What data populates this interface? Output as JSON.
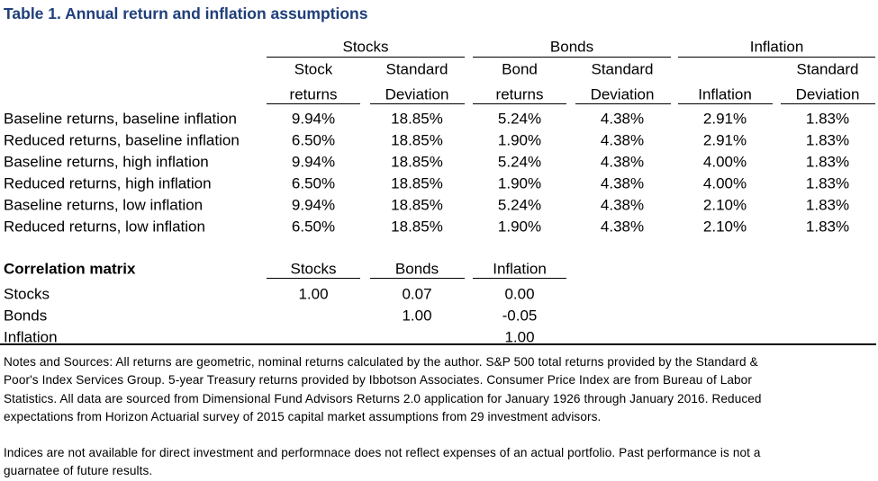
{
  "title": "Table 1. Annual return and inflation assumptions",
  "table": {
    "groups": [
      "Stocks",
      "Bonds",
      "Inflation"
    ],
    "columns": [
      {
        "top": "Stock",
        "bottom": "returns"
      },
      {
        "top": "Standard",
        "bottom": "Deviation"
      },
      {
        "top": "Bond",
        "bottom": "returns"
      },
      {
        "top": "Standard",
        "bottom": "Deviation"
      },
      {
        "bottom": "Inflation"
      },
      {
        "top": "Standard",
        "bottom": "Deviation"
      }
    ],
    "rows": [
      [
        "Baseline returns, baseline inflation",
        "9.94%",
        "18.85%",
        "5.24%",
        "4.38%",
        "2.91%",
        "1.83%"
      ],
      [
        "Reduced returns, baseline inflation",
        "6.50%",
        "18.85%",
        "1.90%",
        "4.38%",
        "2.91%",
        "1.83%"
      ],
      [
        "Baseline returns, high inflation",
        "9.94%",
        "18.85%",
        "5.24%",
        "4.38%",
        "4.00%",
        "1.83%"
      ],
      [
        "Reduced returns, high inflation",
        "6.50%",
        "18.85%",
        "1.90%",
        "4.38%",
        "4.00%",
        "1.83%"
      ],
      [
        "Baseline returns, low inflation",
        "9.94%",
        "18.85%",
        "5.24%",
        "4.38%",
        "2.10%",
        "1.83%"
      ],
      [
        "Reduced returns, low inflation",
        "6.50%",
        "18.85%",
        "1.90%",
        "4.38%",
        "2.10%",
        "1.83%"
      ]
    ]
  },
  "correlation": {
    "title": "Correlation matrix",
    "columns": [
      "Stocks",
      "Bonds",
      "Inflation"
    ],
    "rows": [
      [
        "Stocks",
        "1.00",
        "0.07",
        "0.00"
      ],
      [
        "Bonds",
        "1.00",
        "-0.05"
      ],
      [
        "Inflation",
        "1.00"
      ]
    ]
  },
  "notes": [
    [
      "Notes and Sources: All returns are geometric, nominal returns calculated by the author. S&P 500 total returns provided by the Standard &",
      "Poor's Index Services Group. 5-year Treasury returns provided by Ibbotson Associates. Consumer Price Index are from Bureau of Labor",
      "Statistics. All data are sourced from Dimensional Fund Advisors Returns 2.0 application for January 1926 through January 2016. Reduced",
      "expectations from  Horizon Actuarial survey of 2015 capital market assumptions from 29 investment advisors."
    ],
    [
      "Indices are not available for direct investment and performnace does not reflect expenses of an actual portfolio. Past performance is not a",
      "guarnatee of future results."
    ]
  ]
}
